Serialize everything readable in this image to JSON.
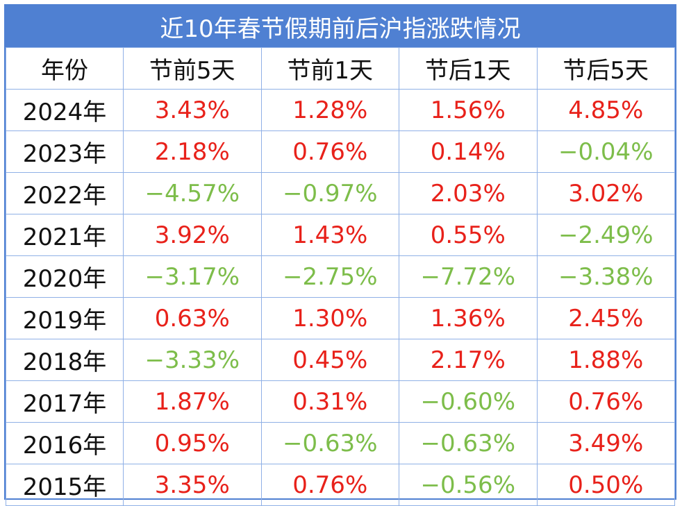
{
  "title": "近10年春节假期前后沪指涨跌情况",
  "table": {
    "header": [
      "年份",
      "节前5天",
      "节前1天",
      "节后1天",
      "节后5天"
    ],
    "rows": [
      [
        "2024年",
        "3.43%",
        "1.28%",
        "1.56%",
        "4.85%"
      ],
      [
        "2023年",
        "2.18%",
        "0.76%",
        "0.14%",
        "−0.04%"
      ],
      [
        "2022年",
        "−4.57%",
        "−0.97%",
        "2.03%",
        "3.02%"
      ],
      [
        "2021年",
        "3.92%",
        "1.43%",
        "0.55%",
        "−2.49%"
      ],
      [
        "2020年",
        "−3.17%",
        "−2.75%",
        "−7.72%",
        "−3.38%"
      ],
      [
        "2019年",
        "0.63%",
        "1.30%",
        "1.36%",
        "2.45%"
      ],
      [
        "2018年",
        "−3.33%",
        "0.45%",
        "2.17%",
        "1.88%"
      ],
      [
        "2017年",
        "1.87%",
        "0.31%",
        "−0.60%",
        "0.76%"
      ],
      [
        "2016年",
        "0.95%",
        "−0.63%",
        "−0.63%",
        "3.49%"
      ],
      [
        "2015年",
        "3.35%",
        "0.76%",
        "−0.56%",
        "0.50%"
      ]
    ]
  }
}
